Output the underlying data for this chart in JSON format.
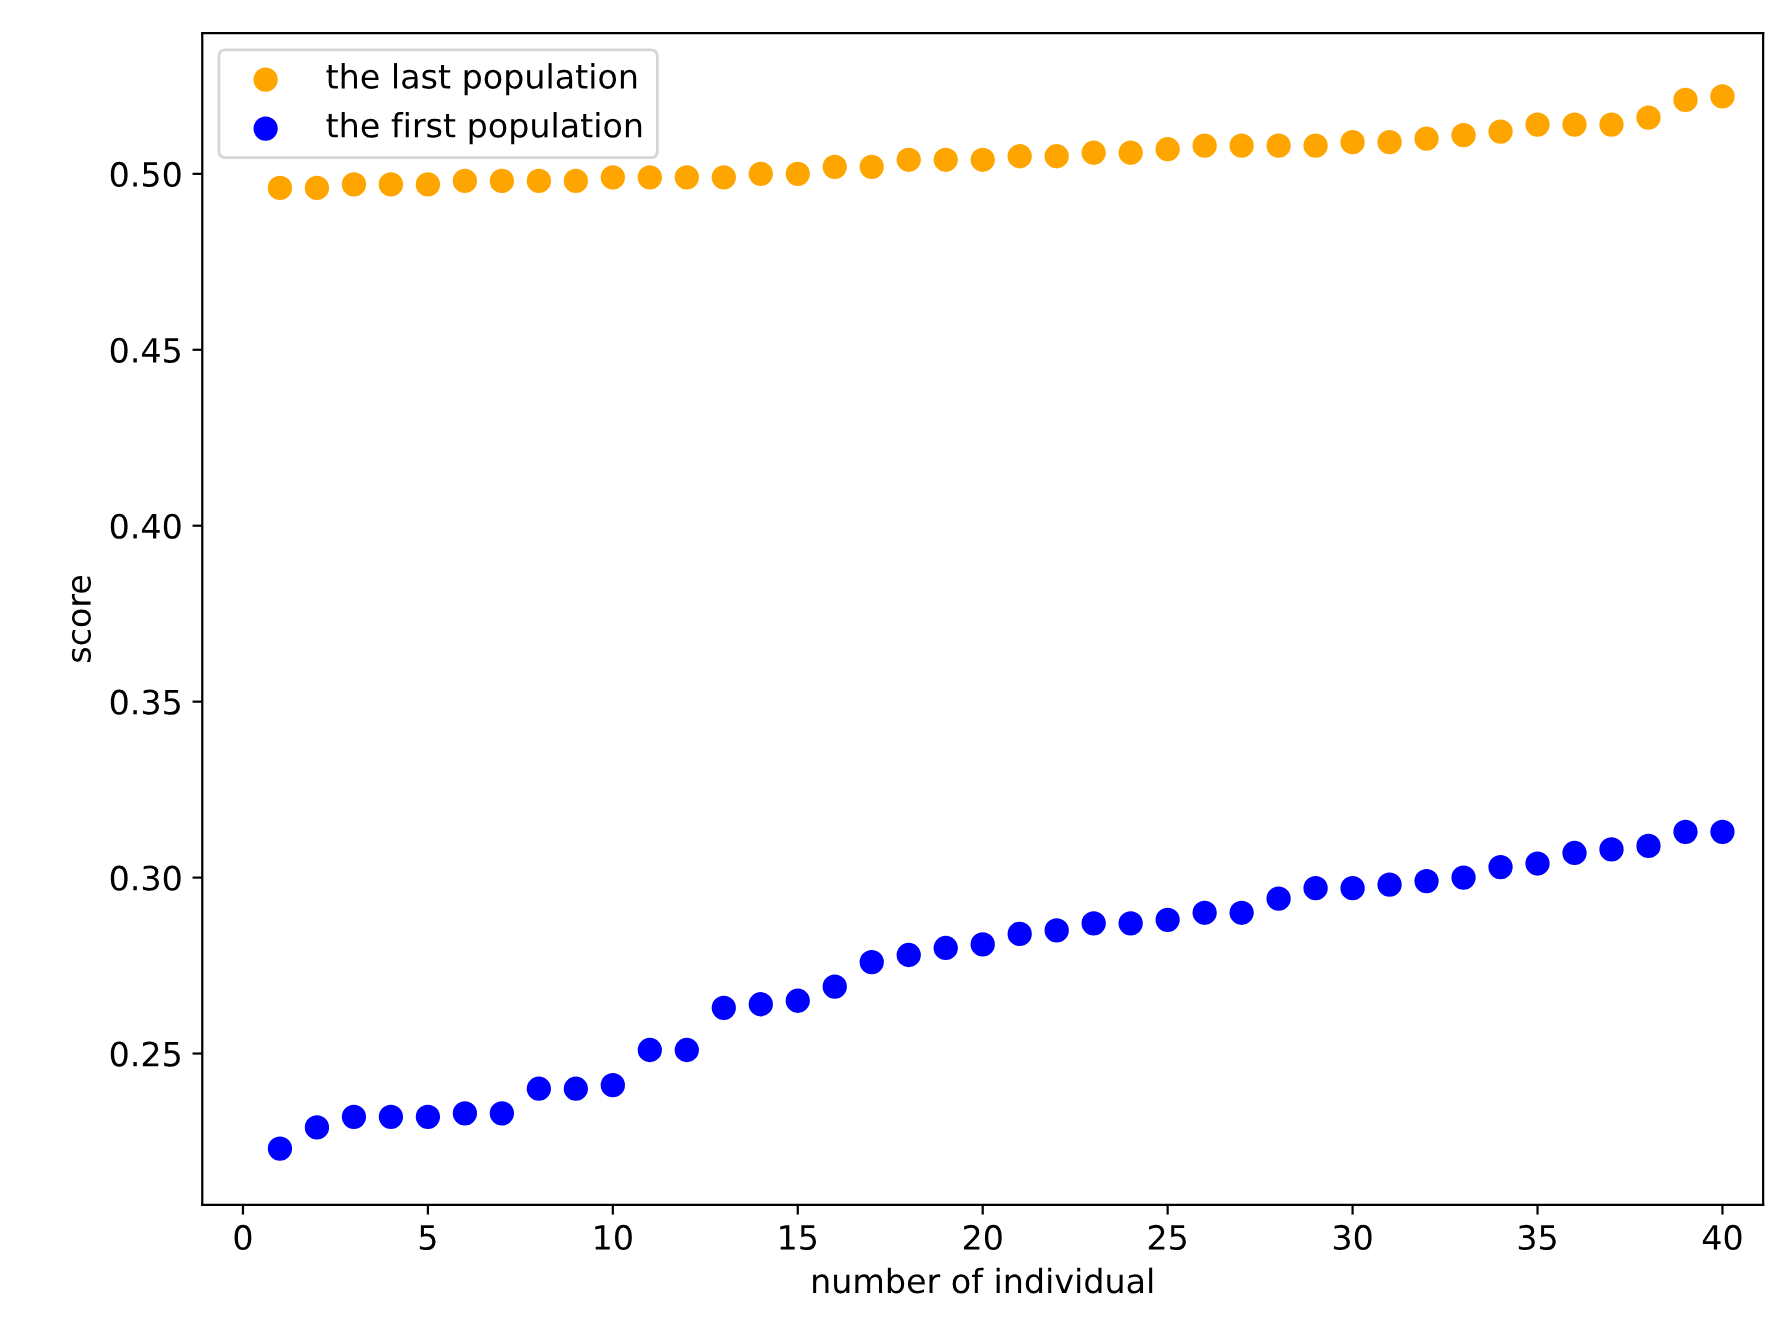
{
  "chart_data": {
    "type": "scatter",
    "xlabel": "number of individual",
    "ylabel": "score",
    "x": [
      1,
      2,
      3,
      4,
      5,
      6,
      7,
      8,
      9,
      10,
      11,
      12,
      13,
      14,
      15,
      16,
      17,
      18,
      19,
      20,
      21,
      22,
      23,
      24,
      25,
      26,
      27,
      28,
      29,
      30,
      31,
      32,
      33,
      34,
      35,
      36,
      37,
      38,
      39,
      40
    ],
    "series": [
      {
        "name": "the last population",
        "color": "#ffa500",
        "values": [
          0.496,
          0.496,
          0.497,
          0.497,
          0.497,
          0.498,
          0.498,
          0.498,
          0.498,
          0.499,
          0.499,
          0.499,
          0.499,
          0.5,
          0.5,
          0.502,
          0.502,
          0.504,
          0.504,
          0.504,
          0.505,
          0.505,
          0.506,
          0.506,
          0.507,
          0.508,
          0.508,
          0.508,
          0.508,
          0.509,
          0.509,
          0.51,
          0.511,
          0.512,
          0.514,
          0.514,
          0.514,
          0.516,
          0.521,
          0.522
        ]
      },
      {
        "name": "the first population",
        "color": "#0000ff",
        "values": [
          0.223,
          0.229,
          0.232,
          0.232,
          0.232,
          0.233,
          0.233,
          0.24,
          0.24,
          0.241,
          0.251,
          0.251,
          0.263,
          0.264,
          0.265,
          0.269,
          0.276,
          0.278,
          0.28,
          0.281,
          0.284,
          0.285,
          0.287,
          0.287,
          0.288,
          0.29,
          0.29,
          0.294,
          0.297,
          0.297,
          0.298,
          0.299,
          0.3,
          0.303,
          0.304,
          0.307,
          0.308,
          0.309,
          0.313,
          0.313
        ]
      }
    ],
    "xlim": [
      -1.1,
      41.1
    ],
    "ylim": [
      0.207,
      0.54
    ],
    "xticks": [
      0,
      5,
      10,
      15,
      20,
      25,
      30,
      35,
      40
    ],
    "yticks": [
      {
        "value": 0.25,
        "label": "0.25"
      },
      {
        "value": 0.3,
        "label": "0.30"
      },
      {
        "value": 0.35,
        "label": "0.35"
      },
      {
        "value": 0.4,
        "label": "0.40"
      },
      {
        "value": 0.45,
        "label": "0.45"
      },
      {
        "value": 0.5,
        "label": "0.50"
      }
    ],
    "legend": "top left",
    "marker": "circle",
    "grid": false
  }
}
